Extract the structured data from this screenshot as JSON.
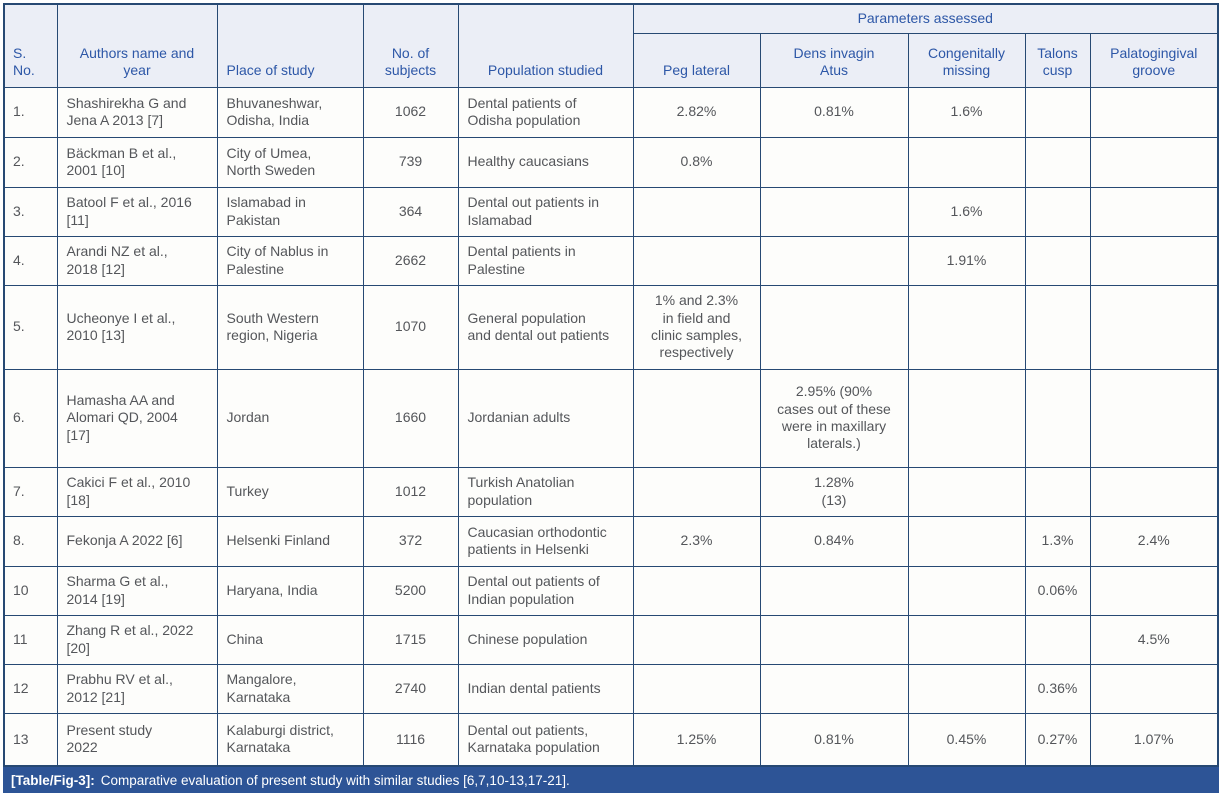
{
  "colors": {
    "border": "#274973",
    "headbg": "#ebeef6",
    "headfg": "#2d57a7",
    "cellbg": "#fdfdfb",
    "cellfg": "#54565a",
    "capbg": "#2d5496",
    "capfg": "#ffffff"
  },
  "table": {
    "header": {
      "s_no": "S.\nNo.",
      "authors": "Authors name and\nyear",
      "place": "Place of study",
      "subjects": "No. of\nsubjects",
      "population": "Population studied",
      "parameters_group": "Parameters assessed",
      "parameters": [
        "Peg lateral",
        "Dens invagin\nAtus",
        "Congenitally\nmissing",
        "Talons\ncusp",
        "Palatogingival\ngroove"
      ]
    },
    "rows": [
      {
        "s_no": "1.",
        "authors": "Shashirekha G and\nJena A 2013 [7]",
        "place": "Bhuvaneshwar,\nOdisha, India",
        "subjects": "1062",
        "population": "Dental patients of\nOdisha population",
        "peg_lateral": "2.82%",
        "dens_invaginatus": "0.81%",
        "congenitally_missing": "1.6%",
        "talons_cusp": "",
        "palatogingival_groove": ""
      },
      {
        "s_no": "2.",
        "authors": "Bäckman B et al.,\n2001 [10]",
        "place": "City of Umea,\nNorth Sweden",
        "subjects": "739",
        "population": "Healthy caucasians",
        "peg_lateral": "0.8%",
        "dens_invaginatus": "",
        "congenitally_missing": "",
        "talons_cusp": "",
        "palatogingival_groove": ""
      },
      {
        "s_no": "3.",
        "authors": "Batool F et al., 2016\n[11]",
        "place": "Islamabad in\nPakistan",
        "subjects": "364",
        "population": "Dental out patients in\nIslamabad",
        "peg_lateral": "",
        "dens_invaginatus": "",
        "congenitally_missing": "1.6%",
        "talons_cusp": "",
        "palatogingival_groove": ""
      },
      {
        "s_no": "4.",
        "authors": "Arandi NZ et al.,\n2018 [12]",
        "place": "City of Nablus in\nPalestine",
        "subjects": "2662",
        "population": "Dental patients in\nPalestine",
        "peg_lateral": "",
        "dens_invaginatus": "",
        "congenitally_missing": "1.91%",
        "talons_cusp": "",
        "palatogingival_groove": ""
      },
      {
        "s_no": "5.",
        "authors": "Ucheonye I et al.,\n2010 [13]",
        "place": "South Western\nregion, Nigeria",
        "subjects": "1070",
        "population": "General population\nand dental out patients",
        "peg_lateral": "1% and 2.3%\nin field and\nclinic samples,\nrespectively",
        "dens_invaginatus": "",
        "congenitally_missing": "",
        "talons_cusp": "",
        "palatogingival_groove": ""
      },
      {
        "s_no": "6.",
        "authors": "Hamasha AA and\nAlomari QD, 2004\n[17]",
        "place": "Jordan",
        "subjects": "1660",
        "population": "Jordanian adults",
        "peg_lateral": "",
        "dens_invaginatus": "2.95% (90%\ncases out of these\nwere in maxillary\nlaterals.)",
        "congenitally_missing": "",
        "talons_cusp": "",
        "palatogingival_groove": ""
      },
      {
        "s_no": "7.",
        "authors": "Cakici F et al., 2010\n[18]",
        "place": "Turkey",
        "subjects": "1012",
        "population": "Turkish Anatolian\npopulation",
        "peg_lateral": "",
        "dens_invaginatus": "1.28%\n(13)",
        "congenitally_missing": "",
        "talons_cusp": "",
        "palatogingival_groove": ""
      },
      {
        "s_no": "8.",
        "authors": "Fekonja A 2022 [6]",
        "place": "Helsenki Finland",
        "subjects": "372",
        "population": "Caucasian orthodontic\npatients in Helsenki",
        "peg_lateral": "2.3%",
        "dens_invaginatus": "0.84%",
        "congenitally_missing": "",
        "talons_cusp": "1.3%",
        "palatogingival_groove": "2.4%"
      },
      {
        "s_no": "10",
        "authors": "Sharma G et al.,\n2014 [19]",
        "place": "Haryana, India",
        "subjects": "5200",
        "population": "Dental out patients of\nIndian population",
        "peg_lateral": "",
        "dens_invaginatus": "",
        "congenitally_missing": "",
        "talons_cusp": "0.06%",
        "palatogingival_groove": ""
      },
      {
        "s_no": "11",
        "authors": "Zhang R et al., 2022\n[20]",
        "place": "China",
        "subjects": "1715",
        "population": "Chinese population",
        "peg_lateral": "",
        "dens_invaginatus": "",
        "congenitally_missing": "",
        "talons_cusp": "",
        "palatogingival_groove": "4.5%"
      },
      {
        "s_no": "12",
        "authors": "Prabhu RV et al.,\n2012 [21]",
        "place": "Mangalore,\nKarnataka",
        "subjects": "2740",
        "population": "Indian dental patients",
        "peg_lateral": "",
        "dens_invaginatus": "",
        "congenitally_missing": "",
        "talons_cusp": "0.36%",
        "palatogingival_groove": ""
      },
      {
        "s_no": "13",
        "authors": "Present study\n2022",
        "place": "Kalaburgi district,\nKarnataka",
        "subjects": "1116",
        "population": "Dental out patients,\nKarnataka population",
        "peg_lateral": "1.25%",
        "dens_invaginatus": "0.81%",
        "congenitally_missing": "0.45%",
        "talons_cusp": "0.27%",
        "palatogingival_groove": "1.07%"
      }
    ]
  },
  "caption": {
    "label": "[Table/Fig-3]:",
    "text": "Comparative evaluation of present study with similar studies [6,7,10-13,17-21]."
  }
}
